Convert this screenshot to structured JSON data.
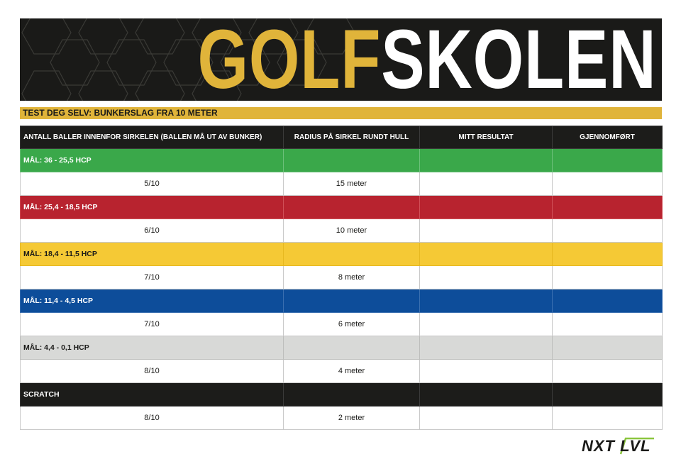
{
  "header": {
    "logo_part1": "GOLF",
    "logo_part2": "SKOLEN",
    "subtitle": "TEST DEG SELV: BUNKERSLAG FRA 10 METER"
  },
  "table": {
    "columns": [
      "ANTALL BALLER INNENFOR SIRKELEN  (BALLEN MÅ UT AV BUNKER)",
      "RADIUS PÅ SIRKEL RUNDT HULL",
      "MITT RESULTAT",
      "GJENNOMFØRT"
    ],
    "levels": [
      {
        "label": "MÅL: 36 - 25,5 HCP",
        "balls": "5/10",
        "radius": "15 meter",
        "color": "#3aa84a"
      },
      {
        "label": "MÅL: 25,4 - 18,5 HCP",
        "balls": "6/10",
        "radius": "10 meter",
        "color": "#b8232f"
      },
      {
        "label": "MÅL: 18,4 - 11,5 HCP",
        "balls": "7/10",
        "radius": "8 meter",
        "color": "#f5c935"
      },
      {
        "label": "MÅL: 11,4 - 4,5 HCP",
        "balls": "7/10",
        "radius": "6 meter",
        "color": "#0d4d9a"
      },
      {
        "label": "MÅL: 4,4 - 0,1 HCP",
        "balls": "8/10",
        "radius": "4 meter",
        "color": "#d8d9d7"
      },
      {
        "label": "SCRATCH",
        "balls": "8/10",
        "radius": "2 meter",
        "color": "#1c1c1a"
      }
    ]
  },
  "footer": {
    "brand": "NXT LVL",
    "brand_accent_color": "#8cc63f"
  },
  "colors": {
    "banner_bg": "#1a1a18",
    "gold": "#e0b43a"
  }
}
